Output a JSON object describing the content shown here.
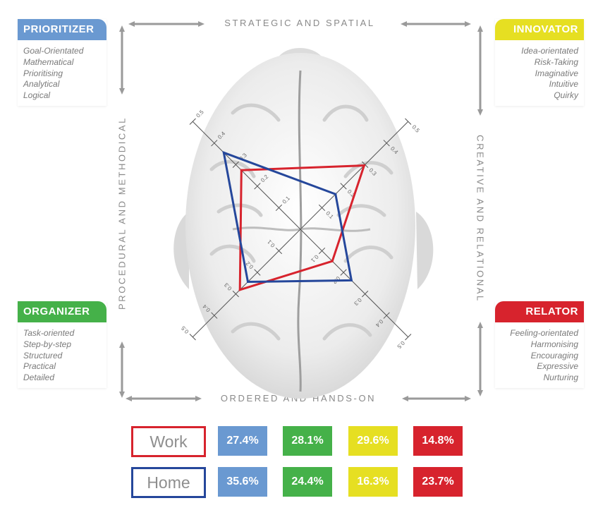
{
  "quadrants": {
    "prioritizer": {
      "title": "PRIORITIZER",
      "color": "#6a99d1",
      "traits": [
        "Goal-Orientated",
        "Mathematical",
        "Prioritising",
        "Analytical",
        "Logical"
      ]
    },
    "innovator": {
      "title": "INNOVATOR",
      "color": "#e6df22",
      "traits": [
        "Idea-orientated",
        "Risk-Taking",
        "Imaginative",
        "Intuitive",
        "Quirky"
      ]
    },
    "organizer": {
      "title": "ORGANIZER",
      "color": "#45b149",
      "traits": [
        "Task-oriented",
        "Step-by-step",
        "Structured",
        "Practical",
        "Detailed"
      ]
    },
    "relator": {
      "title": "RELATOR",
      "color": "#d7232d",
      "traits": [
        "Feeling-orientated",
        "Harmonising",
        "Encouraging",
        "Expressive",
        "Nurturing"
      ]
    }
  },
  "axes": {
    "top": "STRATEGIC AND SPATIAL",
    "bottom": "ORDERED AND HANDS-ON",
    "left": "PROCEDURAL AND METHODICAL",
    "right": "CREATIVE AND RELATIONAL"
  },
  "chart_data": {
    "type": "radar",
    "axes": [
      "Prioritizer",
      "Innovator",
      "Relator",
      "Organizer"
    ],
    "tick_labels": [
      "0.1",
      "0.2",
      "0.3",
      "0.4",
      "0.5"
    ],
    "range": [
      0,
      0.5
    ],
    "series": [
      {
        "name": "Work",
        "color": "#d7232d",
        "values": [
          0.274,
          0.296,
          0.148,
          0.281
        ],
        "labels": [
          "27.4%",
          "29.6%",
          "14.8%",
          "28.1%"
        ]
      },
      {
        "name": "Home",
        "color": "#25479b",
        "values": [
          0.356,
          0.163,
          0.237,
          0.244
        ],
        "labels": [
          "35.6%",
          "16.3%",
          "23.7%",
          "24.4%"
        ]
      }
    ]
  }
}
